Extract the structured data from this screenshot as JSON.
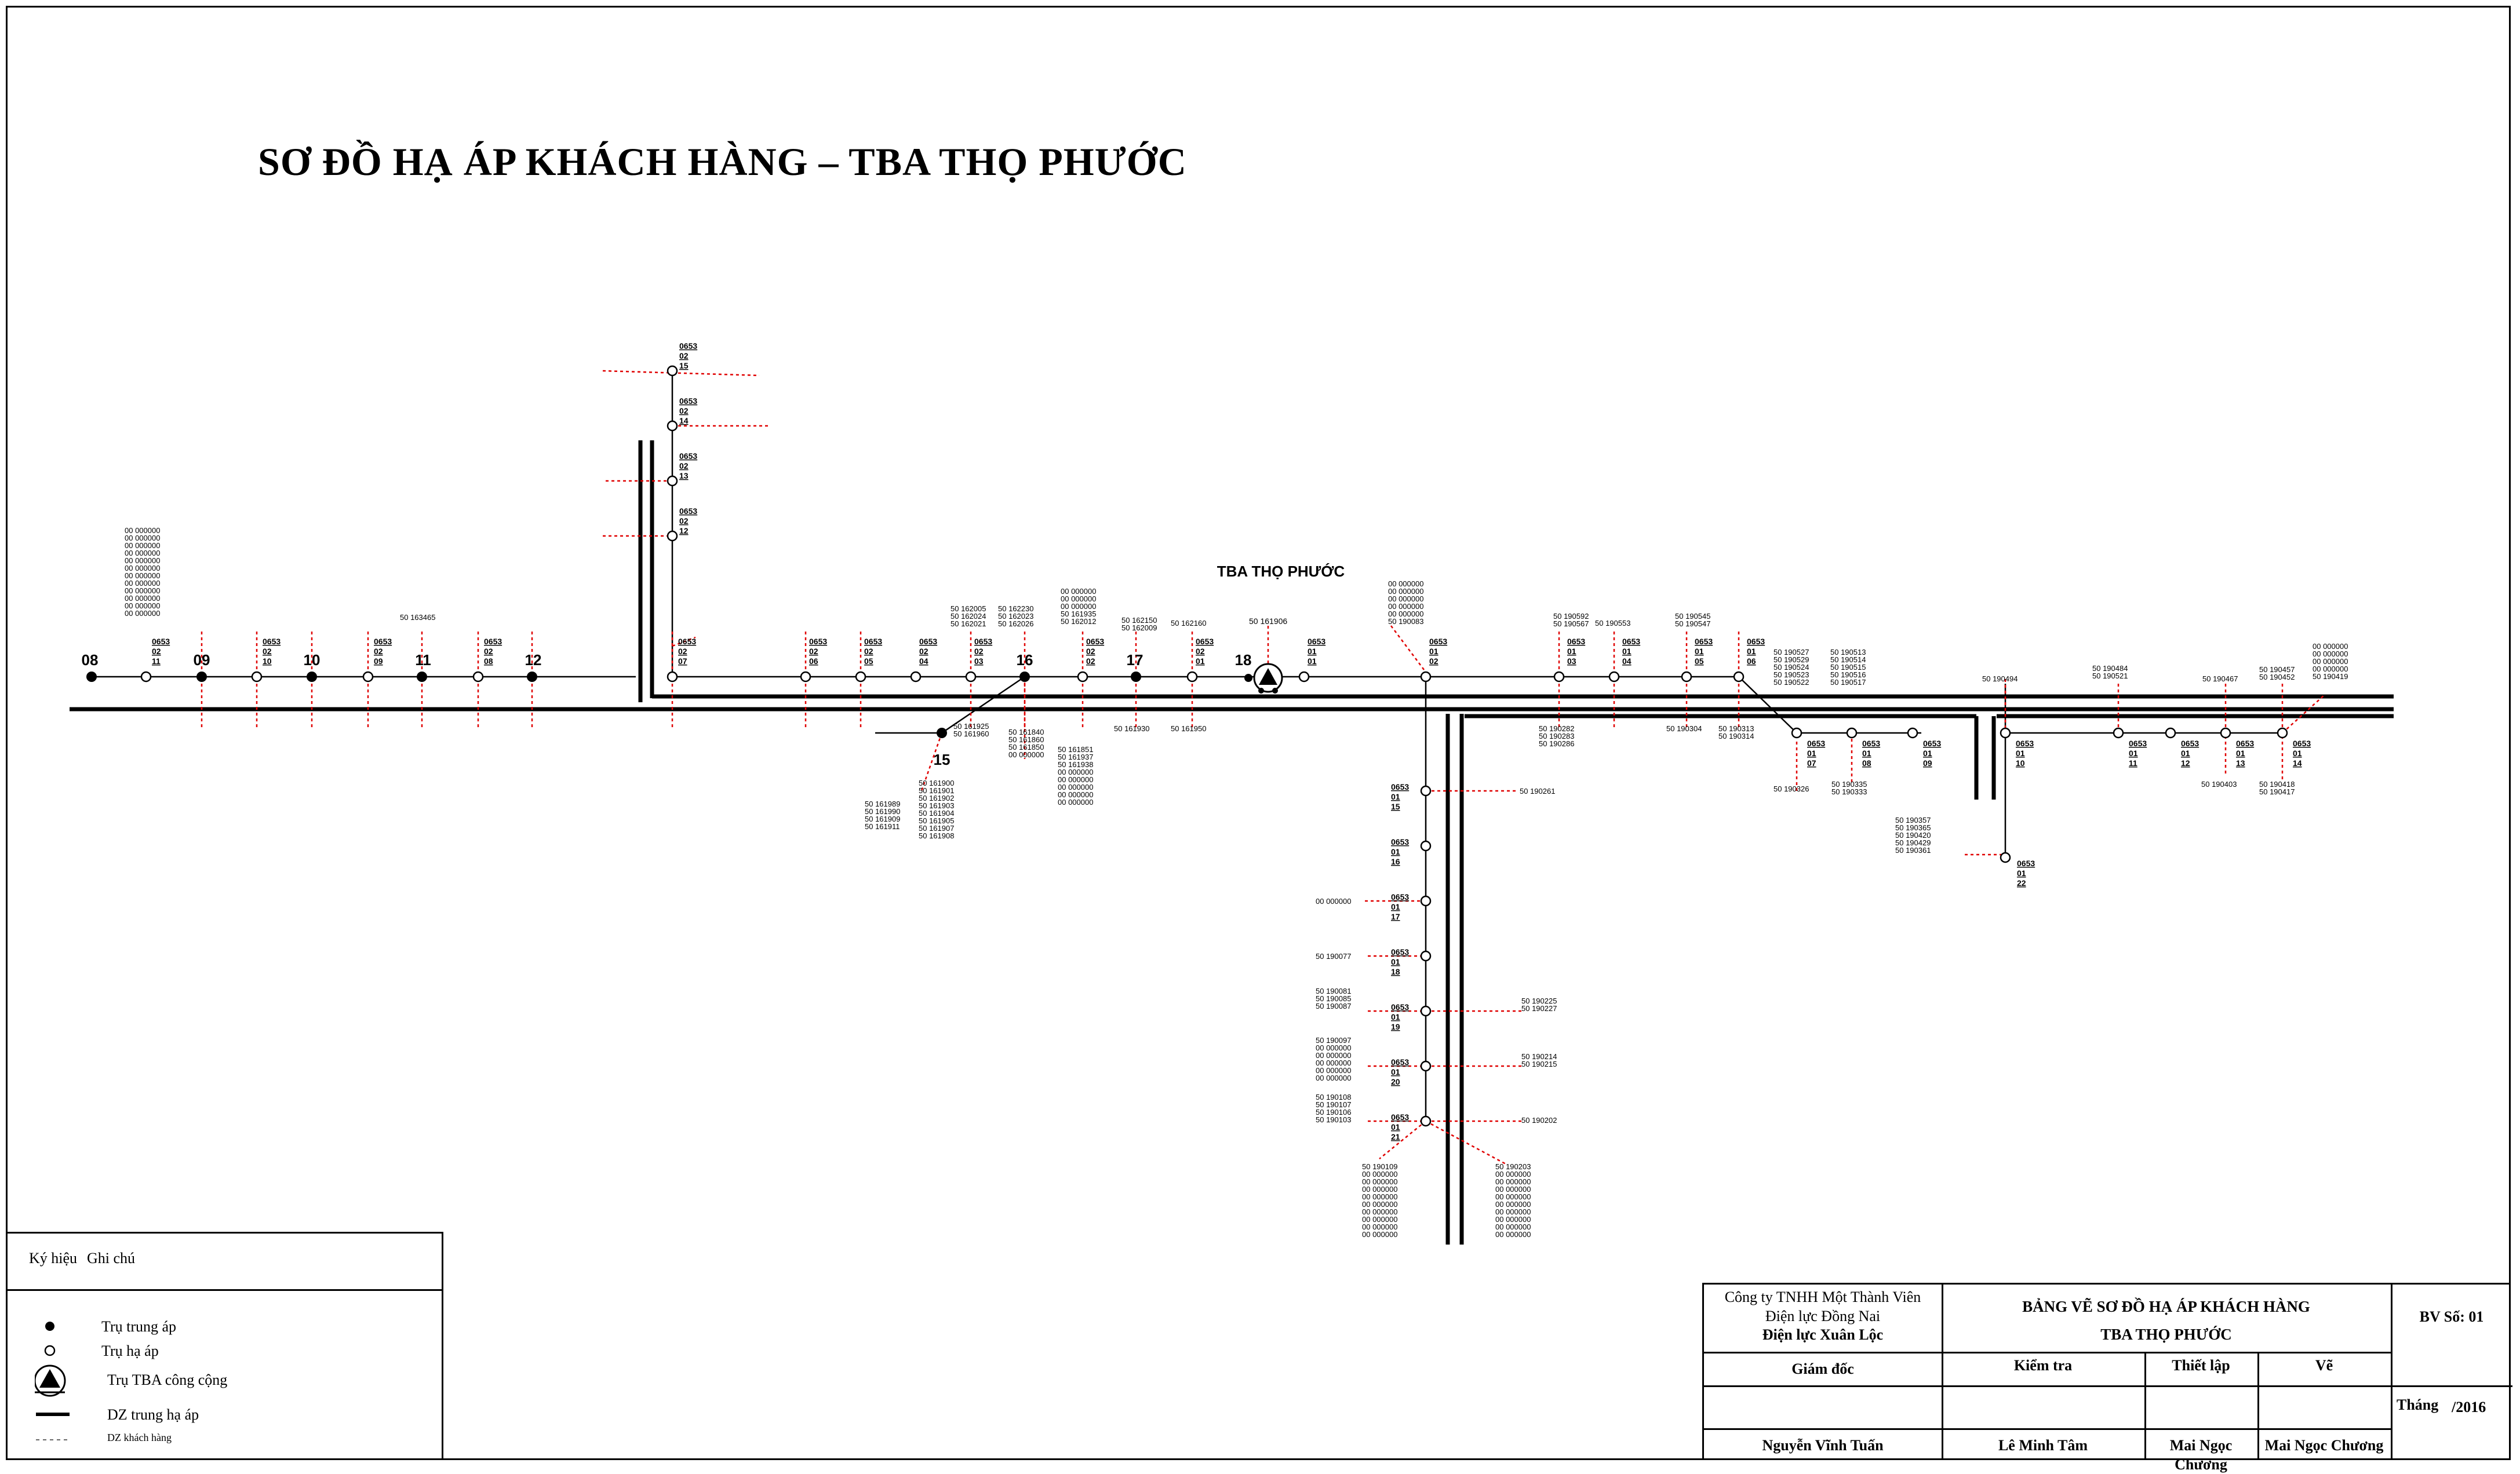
{
  "title": "SƠ ĐỒ HẠ ÁP KHÁCH HÀNG – TBA THỌ PHƯỚC",
  "substation": {
    "label": "TBA THỌ PHƯỚC",
    "code": "50 161906"
  },
  "colors": {
    "line": "#000000",
    "customer_drop": "#e00000"
  },
  "mv_poles": {
    "p08": "08",
    "p09": "09",
    "p10": "10",
    "p11": "11",
    "p12": "12",
    "p15": "15",
    "p16": "16",
    "p17": "17",
    "p18": "18"
  },
  "pole_labels": {
    "p0211": [
      "0653",
      "02",
      "11"
    ],
    "p0210": [
      "0653",
      "02",
      "10"
    ],
    "p0209": [
      "0653",
      "02",
      "09"
    ],
    "p0208": [
      "0653",
      "02",
      "08"
    ],
    "p0207": [
      "0653",
      "02",
      "07"
    ],
    "p0215": [
      "0653",
      "02",
      "15"
    ],
    "p0214": [
      "0653",
      "02",
      "14"
    ],
    "p0213": [
      "0653",
      "02",
      "13"
    ],
    "p0212": [
      "0653",
      "02",
      "12"
    ],
    "p0206": [
      "0653",
      "02",
      "06"
    ],
    "p0205": [
      "0653",
      "02",
      "05"
    ],
    "p0204": [
      "0653",
      "02",
      "04"
    ],
    "p0203": [
      "0653",
      "02",
      "03"
    ],
    "p0202": [
      "0653",
      "02",
      "02"
    ],
    "p0201": [
      "0653",
      "02",
      "01"
    ],
    "p0101": [
      "0653",
      "01",
      "01"
    ],
    "p0102": [
      "0653",
      "01",
      "02"
    ],
    "p0103": [
      "0653",
      "01",
      "03"
    ],
    "p0104": [
      "0653",
      "01",
      "04"
    ],
    "p0105": [
      "0653",
      "01",
      "05"
    ],
    "p0106": [
      "0653",
      "01",
      "06"
    ],
    "p0107": [
      "0653",
      "01",
      "07"
    ],
    "p0108": [
      "0653",
      "01",
      "08"
    ],
    "p0109": [
      "0653",
      "01",
      "09"
    ],
    "p0110": [
      "0653",
      "01",
      "10"
    ],
    "p0111": [
      "0653",
      "01",
      "11"
    ],
    "p0112": [
      "0653",
      "01",
      "12"
    ],
    "p0113": [
      "0653",
      "01",
      "13"
    ],
    "p0114": [
      "0653",
      "01",
      "14"
    ],
    "p0122": [
      "0653",
      "01",
      "22"
    ],
    "p0115": [
      "0653",
      "01",
      "15"
    ],
    "p0116": [
      "0653",
      "01",
      "16"
    ],
    "p0117": [
      "0653",
      "01",
      "17"
    ],
    "p0118": [
      "0653",
      "01",
      "18"
    ],
    "p0119": [
      "0653",
      "01",
      "19"
    ],
    "p0120": [
      "0653",
      "01",
      "20"
    ],
    "p0121": [
      "0653",
      "01",
      "21"
    ]
  },
  "customers": {
    "c0211": [
      "00 000000",
      "00 000000",
      "00 000000",
      "00 000000",
      "00 000000",
      "00 000000",
      "00 000000",
      "00 000000",
      "00 000000",
      "00 000000",
      "00 000000",
      "00 000000"
    ],
    "c0209": [
      "50 163465"
    ],
    "c0203": [
      "50 162005",
      "50 162024",
      "50 162021"
    ],
    "c0202": [
      "50 162230",
      "50 162023",
      "50 162026"
    ],
    "c0202b": [
      "00 000000",
      "00 000000",
      "00 000000",
      "50 161935",
      "50 162012"
    ],
    "c17": [
      "50 162150",
      "50 162009"
    ],
    "c0201": [
      "50 162160"
    ],
    "c0102": [
      "00 000000",
      "00 000000",
      "00 000000",
      "00 000000",
      "00 000000",
      "50 190083"
    ],
    "c0103": [
      "50 190592",
      "50 190567"
    ],
    "c0104": [
      "50 190553"
    ],
    "c0105": [
      "50 190545",
      "50 190547"
    ],
    "c0107": [
      "50 190527",
      "50 190529",
      "50 190524",
      "50 190523",
      "50 190522"
    ],
    "c0108": [
      "50 190513",
      "50 190514",
      "50 190515",
      "50 190516",
      "50 190517"
    ],
    "c0110": [
      "50 190494"
    ],
    "c0111": [
      "50 190484",
      "50 190521"
    ],
    "c0113": [
      "50 190467"
    ],
    "c0114": [
      "50 190457",
      "50 190452"
    ],
    "c0114b": [
      "00 000000",
      "00 000000",
      "00 000000",
      "00 000000",
      "50 190419"
    ],
    "c15a": [
      "50 161925",
      "50 161960"
    ],
    "c16b": [
      "50 161840",
      "50 161860",
      "50 161850",
      "00 000000"
    ],
    "c0202c": [
      "50 161851",
      "50 161937",
      "50 161938",
      "00 000000",
      "00 000000",
      "00 000000",
      "00 000000",
      "00 000000"
    ],
    "c17b": [
      "50 161930"
    ],
    "c0201b": [
      "50 161950"
    ],
    "c15b": [
      "50 161900",
      "50 161901",
      "50 161902",
      "50 161903",
      "50 161904",
      "50 161905",
      "50 161907",
      "50 161908"
    ],
    "c15c": [
      "50 161989",
      "50 161990",
      "50 161909",
      "50 161911"
    ],
    "c0103b": [
      "50 190282",
      "50 190283",
      "50 190286"
    ],
    "c0106b": [
      "50 190304"
    ],
    "c0106c": [
      "50 190313",
      "50 190314"
    ],
    "c0107b": [
      "50 190326"
    ],
    "c0108b": [
      "50 190335",
      "50 190333"
    ],
    "c0113b": [
      "50 190403"
    ],
    "c0114c": [
      "50 190418",
      "50 190417"
    ],
    "c0122": [
      "50 190357",
      "50 190365",
      "50 190420",
      "50 190429",
      "50 190361"
    ],
    "c0115": [
      "50 190261"
    ],
    "c0117": [
      "00 000000"
    ],
    "c0118": [
      "50 190077"
    ],
    "c0119a": [
      "50 190081",
      "50 190085",
      "50 190087"
    ],
    "c0119b": [
      "50 190225",
      "50 190227"
    ],
    "c0120a": [
      "50 190097",
      "00 000000",
      "00 000000",
      "00 000000",
      "00 000000",
      "00 000000"
    ],
    "c0120b": [
      "50 190214",
      "50 190215"
    ],
    "c0121a": [
      "50 190108",
      "50 190107",
      "50 190106",
      "50 190103"
    ],
    "c0121b": [
      "50 190202"
    ],
    "c0121c": [
      "50 190109",
      "00 000000",
      "00 000000",
      "00 000000",
      "00 000000",
      "00 000000",
      "00 000000",
      "00 000000",
      "00 000000",
      "00 000000"
    ],
    "c0121d": [
      "50 190203",
      "00 000000",
      "00 000000",
      "00 000000",
      "00 000000",
      "00 000000",
      "00 000000",
      "00 000000",
      "00 000000",
      "00 000000"
    ]
  },
  "legend": {
    "col_symbol": "Ký hiệu",
    "col_note": "Ghi chú",
    "items": [
      {
        "icon": "filled-circle",
        "label": "Trụ trung áp"
      },
      {
        "icon": "hollow-circle",
        "label": "Trụ hạ áp"
      },
      {
        "icon": "substation-triangle",
        "label": "Trụ TBA công cộng"
      },
      {
        "icon": "thick-line",
        "label": "DZ trung hạ áp"
      },
      {
        "icon": "dashed-line",
        "label": "DZ khách hàng"
      }
    ]
  },
  "title_block": {
    "company_line1": "Công ty TNHH Một Thành Viên",
    "company_line2": "Điện lực Đồng Nai",
    "company_line3": "Điện lực Xuân Lộc",
    "drawing_title1": "BẢNG VẼ SƠ ĐỒ HẠ ÁP KHÁCH HÀNG",
    "drawing_title2": "TBA THỌ PHƯỚC",
    "drawing_no": "BV Số: 01",
    "role_director": "Giám đốc",
    "role_check": "Kiểm tra",
    "role_prepare": "Thiết lập",
    "role_draw": "Vẽ",
    "name_director": "Nguyễn Vĩnh Tuấn",
    "name_check": "Lê Minh Tâm",
    "name_prepare": "Mai Ngọc Chương",
    "name_draw": "Mai Ngọc Chương",
    "month_label": "Tháng",
    "year": "/2016"
  }
}
